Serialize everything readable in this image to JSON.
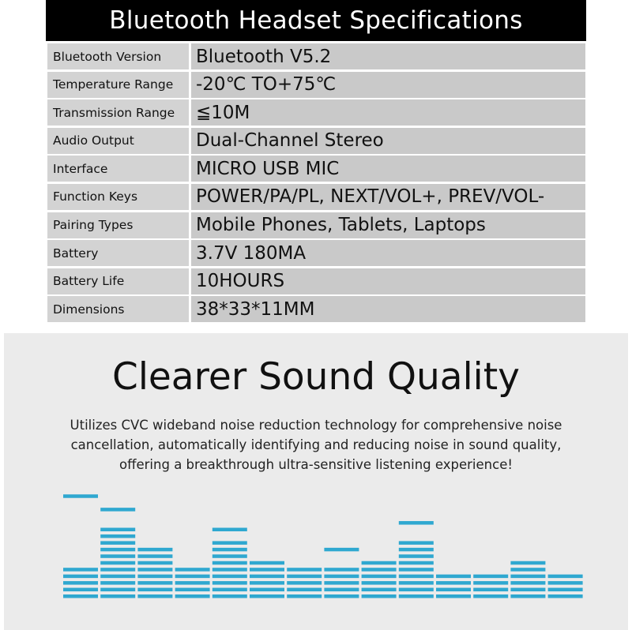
{
  "title": "Bluetooth Headset Specifications",
  "specs": [
    {
      "label": "Bluetooth Version",
      "value": "Bluetooth V5.2"
    },
    {
      "label": "Temperature Range",
      "value": "-20℃  TO+75℃"
    },
    {
      "label": "Transmission Range",
      "value": "≦10M"
    },
    {
      "label": "Audio Output",
      "value": "Dual-Channel Stereo"
    },
    {
      "label": "Interface",
      "value": "MICRO USB  MIC"
    },
    {
      "label": "Function Keys",
      "value": "POWER/PA/PL, NEXT/VOL+, PREV/VOL-"
    },
    {
      "label": "Pairing Types",
      "value": "Mobile Phones, Tablets, Laptops"
    },
    {
      "label": "Battery",
      "value": "3.7V 180MA"
    },
    {
      "label": "Battery Life",
      "value": "10HOURS"
    },
    {
      "label": "Dimensions",
      "value": "38*33*11MM"
    }
  ],
  "feature": {
    "heading": "Clearer Sound Quality",
    "lines": [
      "Utilizes CVC wideband noise reduction technology for comprehensive noise",
      "cancellation, automatically identifying and reducing noise in sound quality,",
      "offering a breakthrough ultra-sensitive listening experience!"
    ]
  },
  "equalizer_graphic": {
    "color": "#2fa8d0",
    "levels": [
      5,
      11,
      8,
      5,
      9,
      6,
      5,
      5,
      6,
      9,
      4,
      4,
      6,
      4
    ],
    "peaks": [
      15,
      13,
      null,
      null,
      10,
      null,
      null,
      7,
      null,
      11,
      null,
      null,
      null,
      null
    ]
  }
}
